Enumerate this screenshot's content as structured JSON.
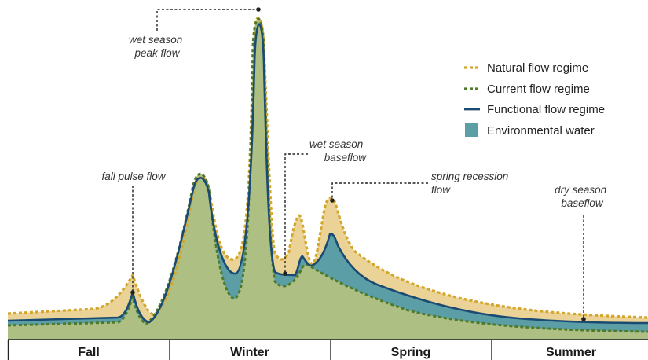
{
  "annotations": {
    "wet_peak": [
      "wet season",
      "peak flow"
    ],
    "fall_pulse": [
      "fall pulse flow"
    ],
    "wet_baseflow": [
      "wet season",
      "baseflow"
    ],
    "spring_recession": [
      "spring recession",
      "flow"
    ],
    "dry_baseflow": [
      "dry season",
      "baseflow"
    ]
  },
  "legend": [
    {
      "label": "Natural flow regime",
      "style": "dotted",
      "color": "#d4a62a"
    },
    {
      "label": "Current flow regime",
      "style": "dotted",
      "color": "#4e7a2a"
    },
    {
      "label": "Functional flow regime",
      "style": "solid",
      "color": "#1b4b73"
    },
    {
      "label": "Environmental water",
      "style": "swatch",
      "color": "#5b9ea6"
    }
  ],
  "seasons": [
    "Fall",
    "Winter",
    "Spring",
    "Summer"
  ],
  "colors": {
    "natural_fill": "#ebd397",
    "current_fill": "#adbf83",
    "env_water_fill": "#5b9ea6",
    "natural_line": "#d4a62a",
    "current_line": "#4e7a2a",
    "functional_line": "#1b4b73"
  }
}
